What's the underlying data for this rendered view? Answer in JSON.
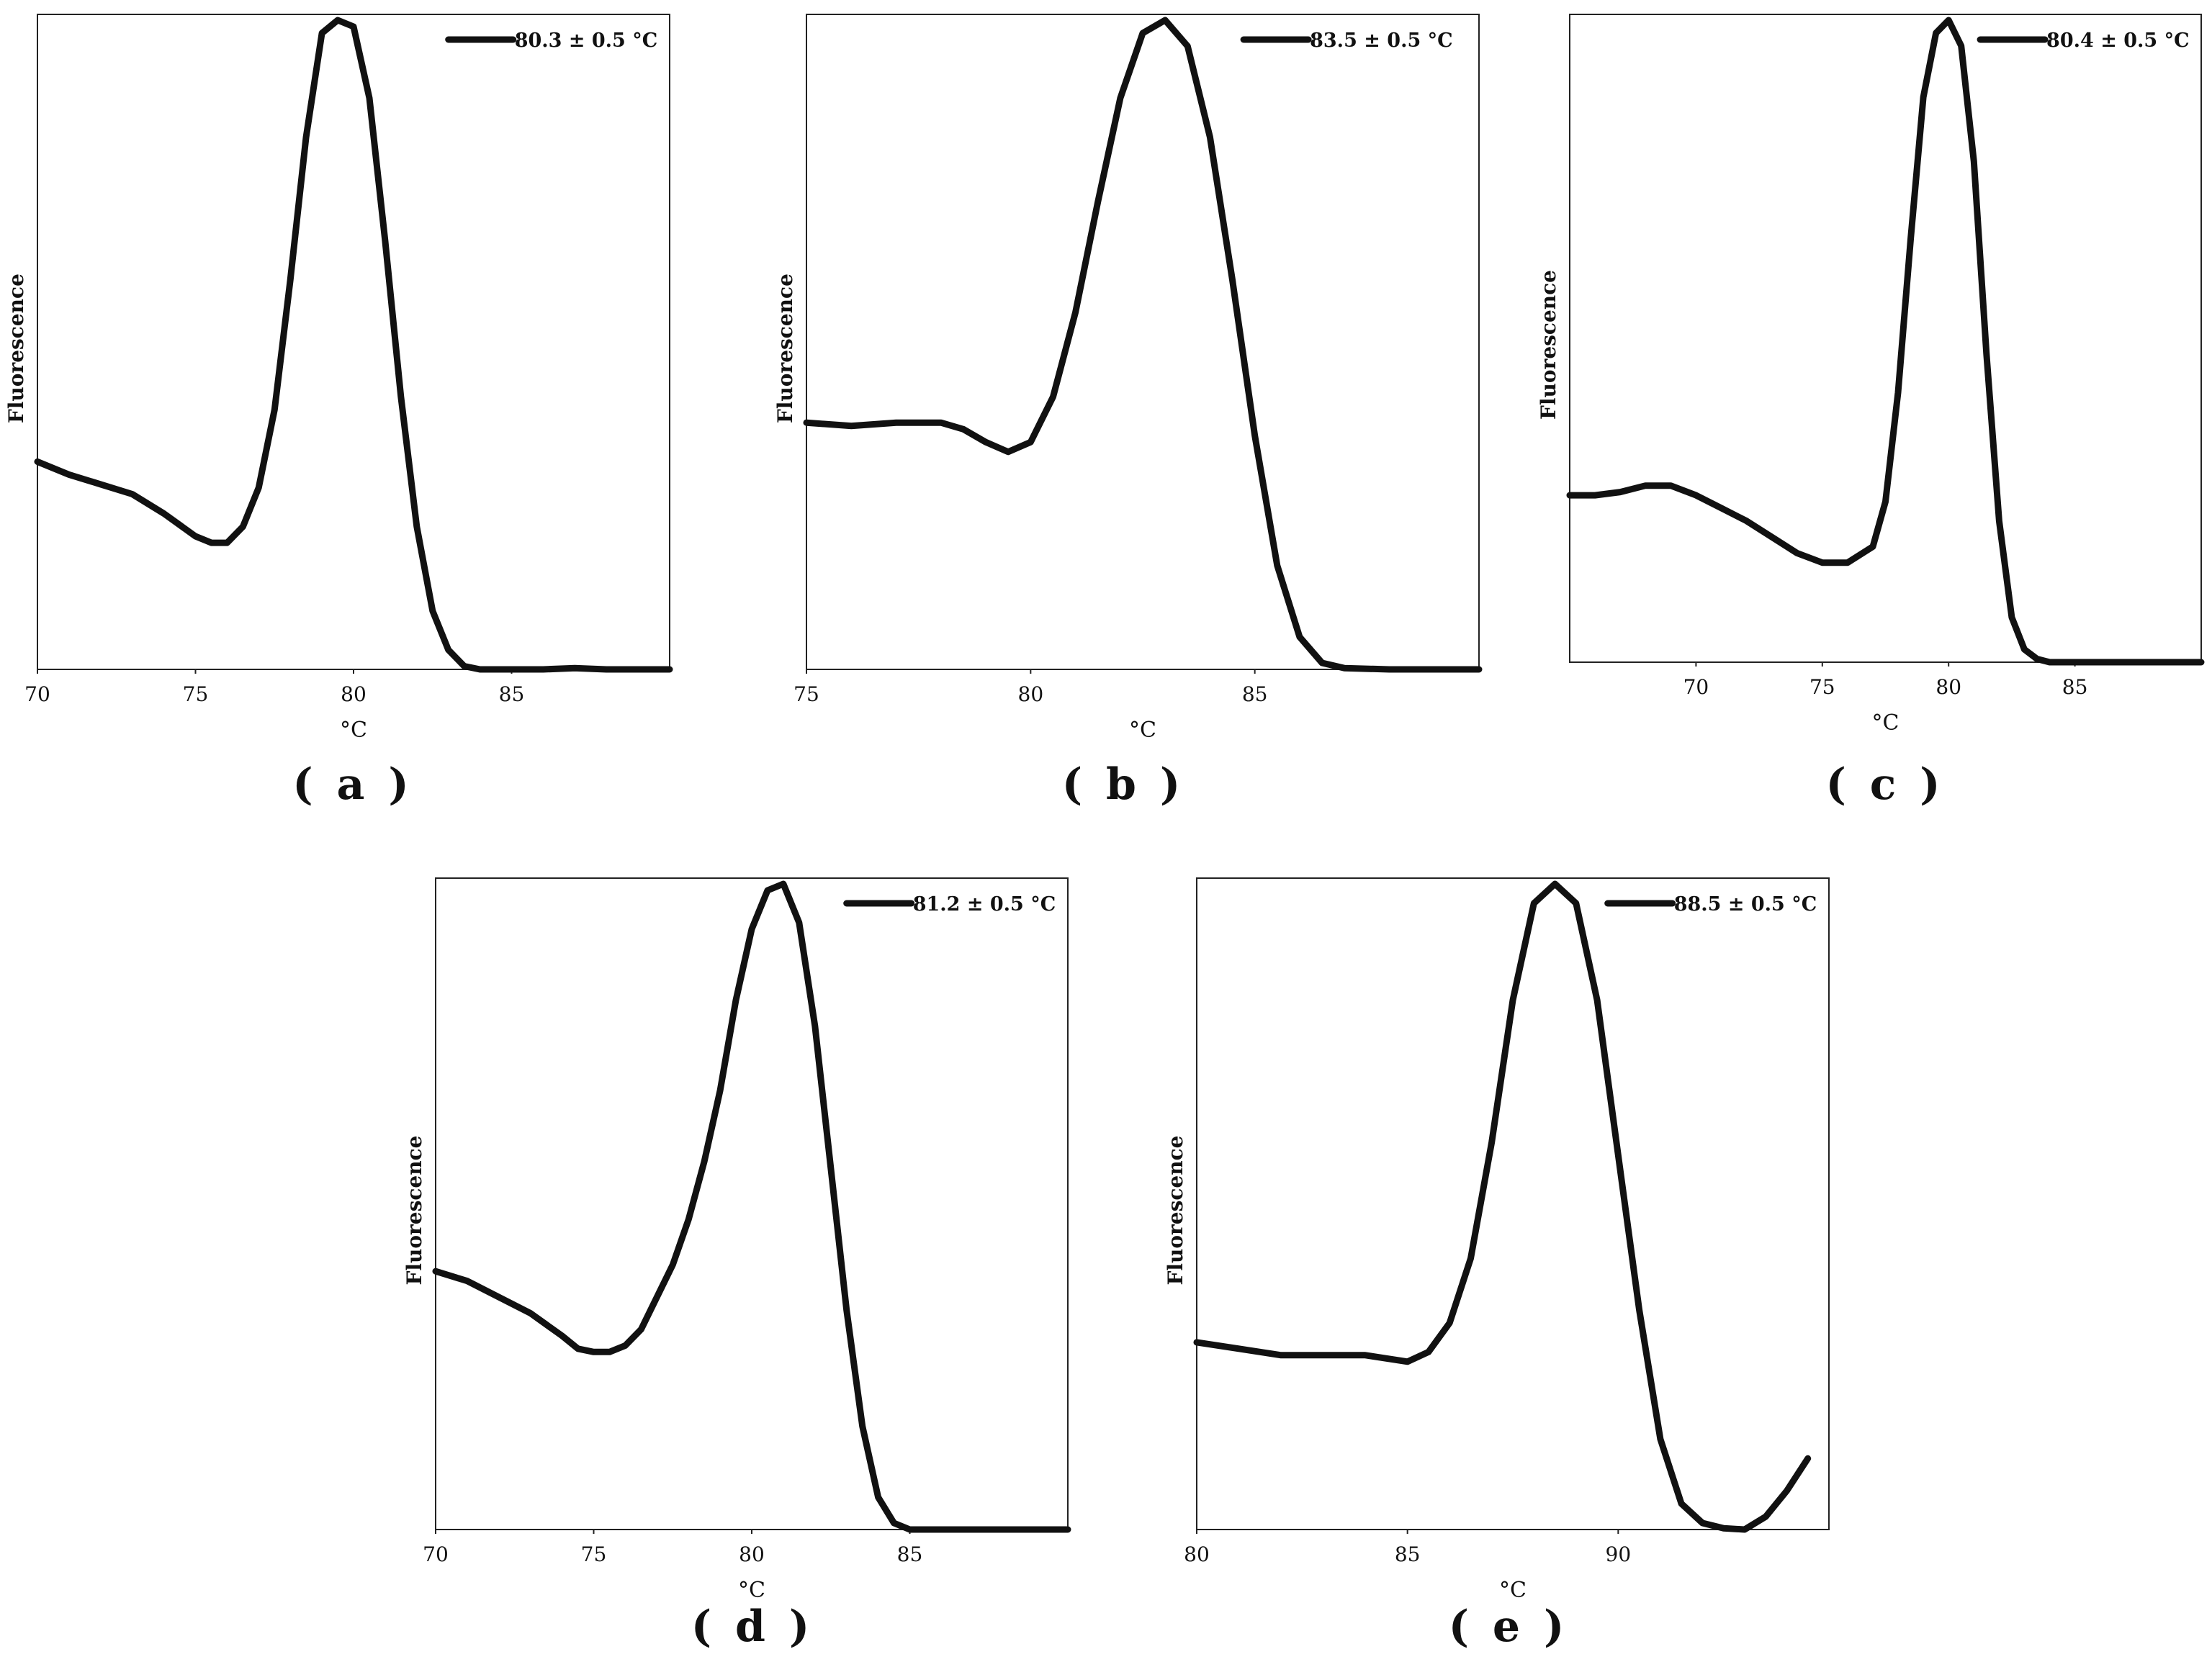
{
  "chart_data": [
    {
      "type": "line",
      "caption": "( a )",
      "xlabel": "°C",
      "ylabel": "Fluorescence",
      "xlim": [
        70,
        90
      ],
      "ylim": [
        0,
        1
      ],
      "xticks": [
        70,
        75,
        80,
        85
      ],
      "series": [
        {
          "name": "80.3 ± 0.5 °C",
          "x": [
            70,
            71,
            72,
            73,
            74,
            75,
            75.5,
            76,
            76.5,
            77,
            77.5,
            78,
            78.5,
            79,
            79.5,
            80,
            80.5,
            81,
            81.5,
            82,
            82.5,
            83,
            83.5,
            84,
            85,
            86,
            87,
            88,
            90
          ],
          "y": [
            0.32,
            0.3,
            0.285,
            0.27,
            0.24,
            0.205,
            0.195,
            0.195,
            0.22,
            0.28,
            0.4,
            0.6,
            0.82,
            0.98,
            1.0,
            0.99,
            0.88,
            0.66,
            0.42,
            0.22,
            0.09,
            0.03,
            0.005,
            0.0,
            0.0,
            0.0,
            0.002,
            0.0,
            0.0
          ],
          "color": "#111111"
        }
      ]
    },
    {
      "type": "line",
      "caption": "( b )",
      "xlabel": "°C",
      "ylabel": "Fluorescence",
      "xlim": [
        75,
        90
      ],
      "ylim": [
        0,
        1
      ],
      "xticks": [
        75,
        80,
        85
      ],
      "series": [
        {
          "name": "83.5 ± 0.5 °C",
          "x": [
            75,
            76,
            77,
            78,
            78.5,
            79,
            79.5,
            80,
            80.5,
            81,
            81.5,
            82,
            82.5,
            83,
            83.5,
            84,
            84.5,
            85,
            85.5,
            86,
            86.5,
            87,
            88,
            89,
            90
          ],
          "y": [
            0.38,
            0.375,
            0.38,
            0.38,
            0.37,
            0.35,
            0.335,
            0.35,
            0.42,
            0.55,
            0.72,
            0.88,
            0.98,
            1.0,
            0.96,
            0.82,
            0.6,
            0.36,
            0.16,
            0.05,
            0.01,
            0.002,
            0.0,
            0.0,
            0.0
          ],
          "color": "#111111"
        }
      ]
    },
    {
      "type": "line",
      "caption": "( c )",
      "xlabel": "°C",
      "ylabel": "Fluorescence",
      "xlim": [
        65,
        90
      ],
      "ylim": [
        0,
        1
      ],
      "xticks": [
        70,
        75,
        80,
        85
      ],
      "series": [
        {
          "name": "80.4 ± 0.5 °C",
          "x": [
            65,
            66,
            67,
            68,
            69,
            70,
            71,
            72,
            73,
            74,
            75,
            76,
            77,
            77.5,
            78,
            78.5,
            79,
            79.5,
            80,
            80.5,
            81,
            81.5,
            82,
            82.5,
            83,
            83.5,
            84,
            85,
            86,
            88,
            90
          ],
          "y": [
            0.26,
            0.26,
            0.265,
            0.275,
            0.275,
            0.26,
            0.24,
            0.22,
            0.195,
            0.17,
            0.155,
            0.155,
            0.18,
            0.25,
            0.42,
            0.66,
            0.88,
            0.98,
            1.0,
            0.96,
            0.78,
            0.48,
            0.22,
            0.07,
            0.02,
            0.005,
            0.0,
            0.0,
            0.0,
            0.0,
            0.0
          ],
          "color": "#111111"
        }
      ]
    },
    {
      "type": "line",
      "caption": "( d )",
      "xlabel": "°C",
      "ylabel": "Fluorescence",
      "xlim": [
        70,
        90
      ],
      "ylim": [
        0,
        1
      ],
      "xticks": [
        70,
        75,
        80,
        85
      ],
      "series": [
        {
          "name": "81.2 ± 0.5 °C",
          "x": [
            70,
            71,
            72,
            73,
            74,
            74.5,
            75,
            75.5,
            76,
            76.5,
            77,
            77.5,
            78,
            78.5,
            79,
            79.5,
            80,
            80.5,
            81,
            81.5,
            82,
            82.5,
            83,
            83.5,
            84,
            84.5,
            85,
            86,
            87,
            88,
            90
          ],
          "y": [
            0.4,
            0.385,
            0.36,
            0.335,
            0.3,
            0.28,
            0.275,
            0.275,
            0.285,
            0.31,
            0.36,
            0.41,
            0.48,
            0.57,
            0.68,
            0.82,
            0.93,
            0.99,
            1.0,
            0.94,
            0.78,
            0.56,
            0.34,
            0.16,
            0.05,
            0.01,
            0.0,
            0.0,
            0.0,
            0.0,
            0.0
          ],
          "color": "#111111"
        }
      ]
    },
    {
      "type": "line",
      "caption": "( e )",
      "xlabel": "°C",
      "ylabel": "Fluorescence",
      "xlim": [
        80,
        95
      ],
      "ylim": [
        0,
        1
      ],
      "xticks": [
        80,
        85,
        90
      ],
      "series": [
        {
          "name": "88.5 ± 0.5 °C",
          "x": [
            80,
            81,
            82,
            83,
            84,
            84.5,
            85,
            85.5,
            86,
            86.5,
            87,
            87.5,
            88,
            88.5,
            89,
            89.5,
            90,
            90.5,
            91,
            91.5,
            92,
            92.5,
            93,
            93.5,
            94,
            94.5
          ],
          "y": [
            0.29,
            0.28,
            0.27,
            0.27,
            0.27,
            0.265,
            0.26,
            0.275,
            0.32,
            0.42,
            0.6,
            0.82,
            0.97,
            1.0,
            0.97,
            0.82,
            0.58,
            0.34,
            0.14,
            0.04,
            0.01,
            0.002,
            0.0,
            0.02,
            0.06,
            0.11
          ],
          "color": "#111111"
        }
      ]
    }
  ]
}
